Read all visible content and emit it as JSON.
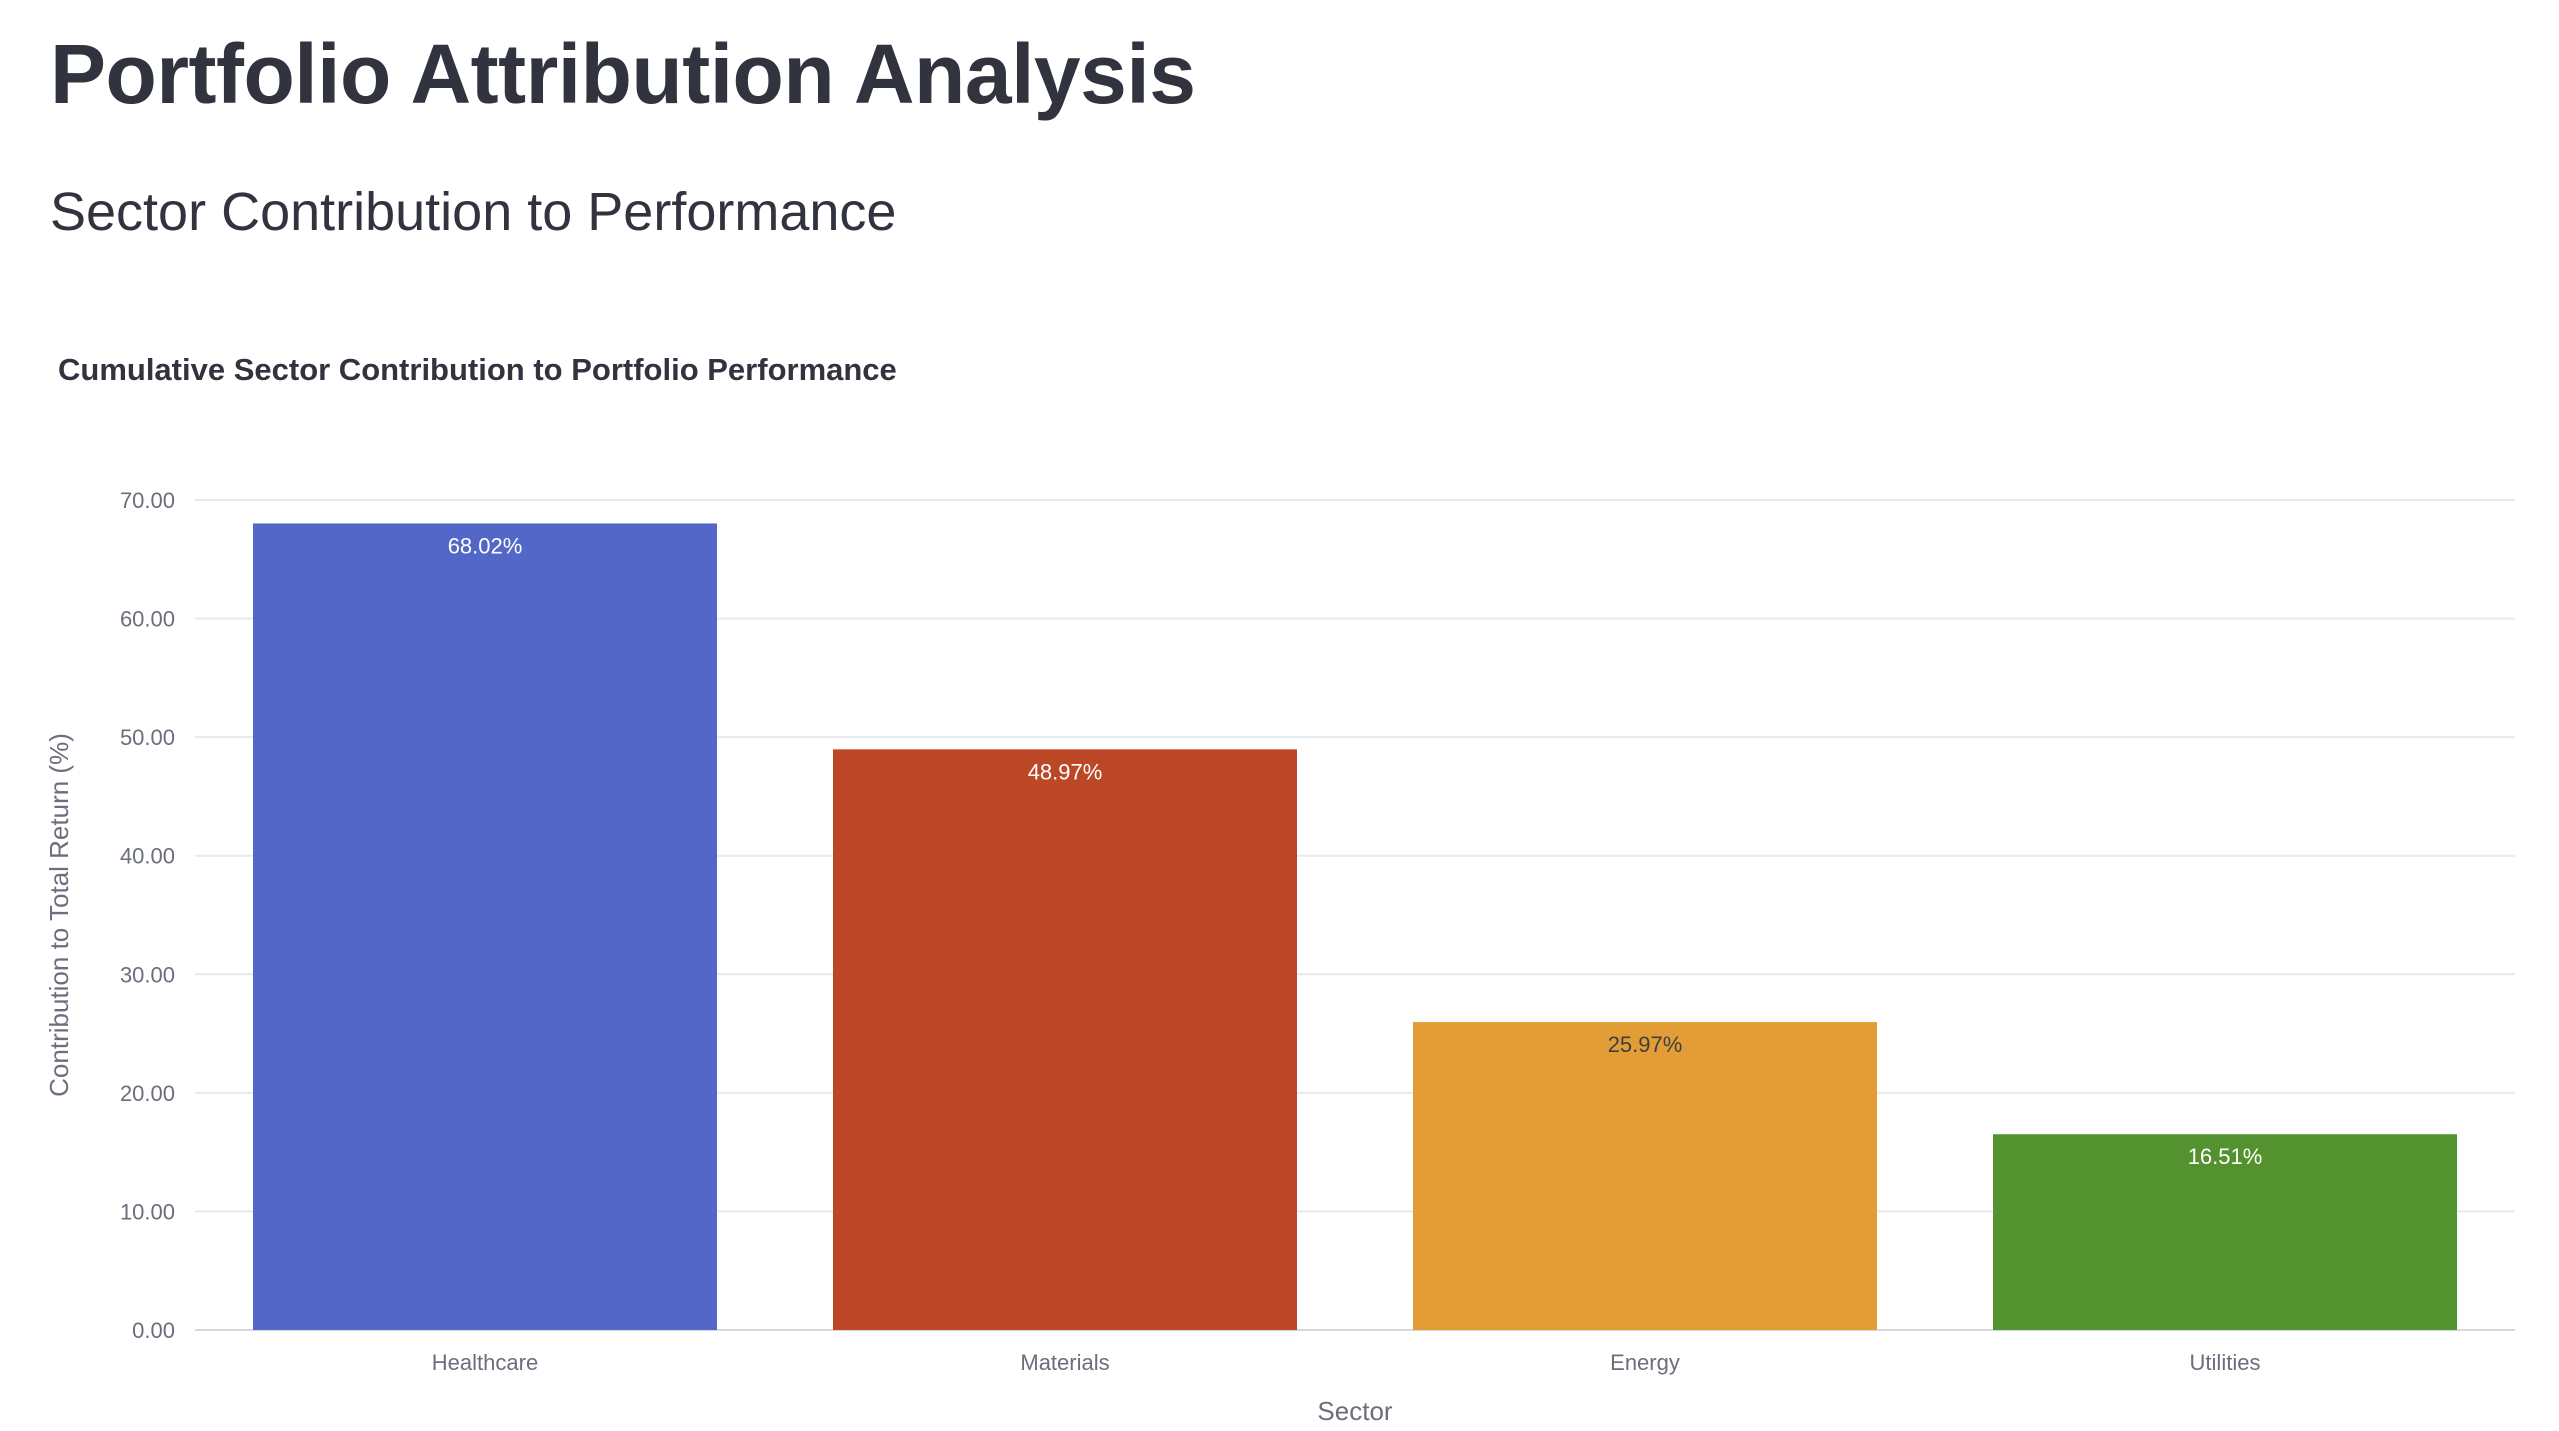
{
  "header": {
    "title": "Portfolio Attribution Analysis",
    "subtitle": "Sector Contribution to Performance"
  },
  "chart_data": {
    "type": "bar",
    "title": "Cumulative Sector Contribution to Portfolio Performance",
    "xlabel": "Sector",
    "ylabel": "Contribution to Total Return (%)",
    "categories": [
      "Healthcare",
      "Materials",
      "Energy",
      "Utilities"
    ],
    "values": [
      68.02,
      48.97,
      25.97,
      16.51
    ],
    "data_labels": [
      "68.02%",
      "48.97%",
      "25.97%",
      "16.51%"
    ],
    "ylim": [
      0,
      70
    ],
    "yticks": [
      0,
      10,
      20,
      30,
      40,
      50,
      60,
      70
    ],
    "ytick_labels": [
      "0.00",
      "10.00",
      "20.00",
      "30.00",
      "40.00",
      "50.00",
      "60.00",
      "70.00"
    ],
    "grid": true,
    "legend": "none",
    "colors": [
      "#5267c7",
      "#bc4727",
      "#e39d37",
      "#53922f"
    ],
    "label_colors": [
      "#ffffff",
      "#ffffff",
      "#3f3f3f",
      "#ffffff"
    ]
  }
}
